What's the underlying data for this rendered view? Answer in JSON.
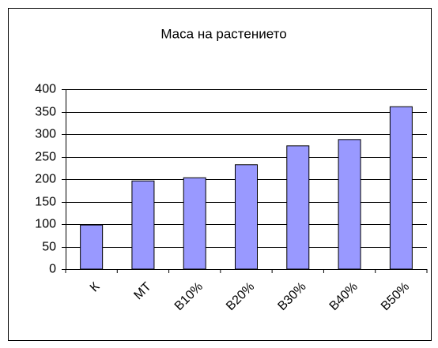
{
  "chart_data": {
    "type": "bar",
    "title": "Маса на растението",
    "categories": [
      "К",
      "МТ",
      "В10%",
      "В20%",
      "В30%",
      "В40%",
      "В50%"
    ],
    "values": [
      98,
      196,
      203,
      232,
      274,
      288,
      361
    ],
    "color": "#9999ff",
    "ylim": [
      0,
      400
    ],
    "yticks": [
      0,
      50,
      100,
      150,
      200,
      250,
      300,
      350,
      400
    ],
    "grid": true
  }
}
